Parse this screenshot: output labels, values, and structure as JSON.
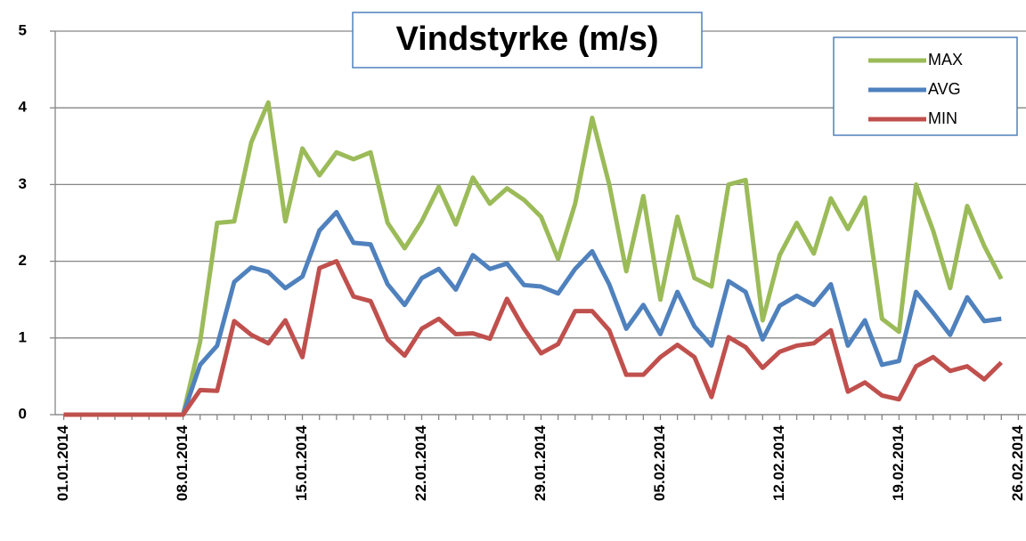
{
  "chart_data": {
    "type": "line",
    "title": "Vindstyrke (m/s)",
    "categories": [
      "01.01.2014",
      null,
      null,
      null,
      null,
      null,
      null,
      "08.01.2014",
      null,
      null,
      null,
      null,
      null,
      null,
      "15.01.2014",
      null,
      null,
      null,
      null,
      null,
      null,
      "22.01.2014",
      null,
      null,
      null,
      null,
      null,
      null,
      "29.01.2014",
      null,
      null,
      null,
      null,
      null,
      null,
      "05.02.2014",
      null,
      null,
      null,
      null,
      null,
      null,
      "12.02.2014",
      null,
      null,
      null,
      null,
      null,
      null,
      "19.02.2014",
      null,
      null,
      null,
      null,
      null,
      null,
      "26.02.2014"
    ],
    "series": [
      {
        "name": "MAX",
        "color": "#9bbb59",
        "values": [
          0,
          0,
          0,
          0,
          0,
          0,
          0,
          0,
          0.95,
          2.5,
          2.52,
          3.55,
          4.07,
          2.52,
          3.47,
          3.12,
          3.42,
          3.33,
          3.42,
          2.5,
          2.17,
          2.52,
          2.97,
          2.48,
          3.09,
          2.75,
          2.95,
          2.8,
          2.58,
          2.03,
          2.75,
          3.87,
          3.0,
          1.87,
          2.85,
          1.5,
          2.58,
          1.78,
          1.67,
          3.0,
          3.06,
          1.23,
          2.08,
          2.5,
          2.1,
          2.82,
          2.42,
          2.83,
          1.25,
          1.08,
          3.0,
          2.4,
          1.65,
          2.72,
          2.2,
          1.77,
          null
        ]
      },
      {
        "name": "AVG",
        "color": "#4f81bd",
        "values": [
          0,
          0,
          0,
          0,
          0,
          0,
          0,
          0,
          0.65,
          0.9,
          1.73,
          1.92,
          1.86,
          1.65,
          1.8,
          2.4,
          2.64,
          2.24,
          2.22,
          1.7,
          1.43,
          1.78,
          1.9,
          1.63,
          2.08,
          1.9,
          1.97,
          1.69,
          1.67,
          1.58,
          1.9,
          2.13,
          1.7,
          1.12,
          1.43,
          1.05,
          1.6,
          1.15,
          0.9,
          1.74,
          1.6,
          0.98,
          1.42,
          1.55,
          1.43,
          1.7,
          0.9,
          1.23,
          0.65,
          0.7,
          1.6,
          1.33,
          1.04,
          1.53,
          1.22,
          1.25,
          null
        ]
      },
      {
        "name": "MIN",
        "color": "#c0504d",
        "values": [
          0,
          0,
          0,
          0,
          0,
          0,
          0,
          0,
          0.32,
          0.31,
          1.22,
          1.04,
          0.93,
          1.23,
          0.75,
          1.91,
          2.0,
          1.54,
          1.48,
          0.98,
          0.77,
          1.12,
          1.25,
          1.05,
          1.06,
          0.99,
          1.51,
          1.12,
          0.8,
          0.92,
          1.35,
          1.35,
          1.1,
          0.52,
          0.52,
          0.75,
          0.91,
          0.75,
          0.23,
          1.01,
          0.88,
          0.61,
          0.82,
          0.9,
          0.93,
          1.1,
          0.3,
          0.42,
          0.25,
          0.2,
          0.63,
          0.75,
          0.57,
          0.63,
          0.46,
          0.68,
          null
        ]
      }
    ],
    "ylim": [
      0,
      5
    ],
    "yticks": [
      0,
      1,
      2,
      3,
      4,
      5
    ],
    "grid": true,
    "legend": "upper right"
  }
}
